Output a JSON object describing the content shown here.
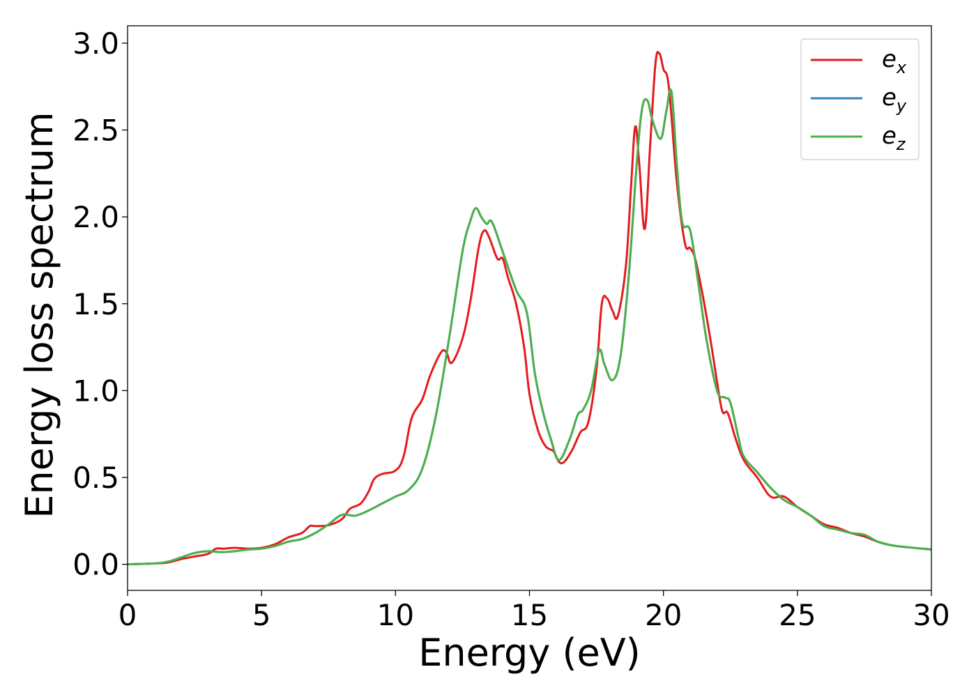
{
  "chart_data": {
    "type": "line",
    "xlabel": "Energy (eV)",
    "ylabel": "Energy loss spectrum",
    "xlim": [
      0,
      30
    ],
    "ylim": [
      -0.15,
      3.1
    ],
    "xticks": [
      0,
      5,
      10,
      15,
      20,
      25,
      30
    ],
    "yticks": [
      0.0,
      0.5,
      1.0,
      1.5,
      2.0,
      2.5,
      3.0
    ],
    "xtick_labels": [
      "0",
      "5",
      "10",
      "15",
      "20",
      "25",
      "30"
    ],
    "ytick_labels": [
      "0.0",
      "0.5",
      "1.0",
      "1.5",
      "2.0",
      "2.5",
      "3.0"
    ],
    "grid": false,
    "legend_position": "top-right",
    "series": [
      {
        "name": "e_x",
        "label_main": "e",
        "label_sub": "x",
        "color": "#e41a1c",
        "x": [
          0,
          1,
          1.5,
          2,
          2.5,
          3,
          3.3,
          3.6,
          4,
          4.5,
          5,
          5.5,
          6,
          6.5,
          6.8,
          7,
          7.5,
          8,
          8.3,
          8.7,
          9,
          9.2,
          9.5,
          10,
          10.3,
          10.6,
          11,
          11.3,
          11.7,
          11.9,
          12.1,
          12.5,
          12.8,
          13.1,
          13.3,
          13.5,
          13.8,
          14,
          14.2,
          14.5,
          14.8,
          15,
          15.3,
          15.6,
          15.9,
          16.1,
          16.3,
          16.6,
          16.9,
          17.2,
          17.5,
          17.7,
          17.9,
          18.1,
          18.3,
          18.6,
          18.8,
          18.95,
          19.1,
          19.3,
          19.5,
          19.7,
          19.85,
          20,
          20.2,
          20.5,
          20.8,
          21,
          21.2,
          21.5,
          21.8,
          22,
          22.2,
          22.4,
          22.7,
          23,
          23.5,
          24,
          24.5,
          25,
          25.5,
          26,
          26.5,
          27,
          27.5,
          28,
          28.5,
          29,
          30
        ],
        "y": [
          0.0,
          0.005,
          0.01,
          0.03,
          0.045,
          0.06,
          0.09,
          0.09,
          0.095,
          0.09,
          0.095,
          0.115,
          0.155,
          0.18,
          0.22,
          0.22,
          0.225,
          0.26,
          0.32,
          0.35,
          0.42,
          0.49,
          0.52,
          0.54,
          0.62,
          0.84,
          0.95,
          1.09,
          1.22,
          1.22,
          1.16,
          1.3,
          1.52,
          1.82,
          1.92,
          1.88,
          1.76,
          1.76,
          1.65,
          1.5,
          1.25,
          0.98,
          0.78,
          0.68,
          0.65,
          0.59,
          0.59,
          0.66,
          0.76,
          0.82,
          1.12,
          1.5,
          1.53,
          1.46,
          1.43,
          1.72,
          2.2,
          2.52,
          2.3,
          1.93,
          2.4,
          2.88,
          2.94,
          2.85,
          2.75,
          2.2,
          1.85,
          1.82,
          1.75,
          1.52,
          1.25,
          1.05,
          0.88,
          0.87,
          0.72,
          0.6,
          0.5,
          0.39,
          0.39,
          0.33,
          0.28,
          0.23,
          0.21,
          0.18,
          0.16,
          0.13,
          0.11,
          0.1,
          0.085
        ]
      },
      {
        "name": "e_y",
        "label_main": "e",
        "label_sub": "y",
        "color": "#377eb8",
        "x": [
          0,
          1,
          1.5,
          2,
          2.5,
          3,
          3.5,
          4,
          4.5,
          5,
          5.5,
          6,
          6.5,
          7,
          7.5,
          8,
          8.5,
          9,
          9.5,
          10,
          10.5,
          11,
          11.5,
          12,
          12.5,
          12.8,
          13,
          13.2,
          13.4,
          13.6,
          14,
          14.5,
          14.9,
          15.2,
          15.5,
          15.8,
          16.1,
          16.5,
          16.8,
          17,
          17.3,
          17.6,
          17.8,
          18.1,
          18.4,
          18.7,
          19,
          19.2,
          19.4,
          19.6,
          19.9,
          20.1,
          20.3,
          20.5,
          20.7,
          21,
          21.3,
          21.6,
          22,
          22.3,
          22.5,
          22.8,
          23,
          23.5,
          24,
          24.5,
          25,
          25.5,
          26,
          26.5,
          27,
          27.5,
          28,
          28.5,
          29,
          30
        ],
        "y": [
          0.0,
          0.005,
          0.015,
          0.04,
          0.065,
          0.075,
          0.07,
          0.075,
          0.085,
          0.09,
          0.105,
          0.13,
          0.145,
          0.18,
          0.23,
          0.285,
          0.28,
          0.31,
          0.35,
          0.39,
          0.43,
          0.55,
          0.85,
          1.3,
          1.8,
          1.98,
          2.05,
          2.0,
          1.96,
          1.97,
          1.8,
          1.58,
          1.45,
          1.1,
          0.88,
          0.72,
          0.6,
          0.72,
          0.86,
          0.89,
          1.0,
          1.23,
          1.15,
          1.06,
          1.2,
          1.65,
          2.3,
          2.62,
          2.67,
          2.55,
          2.45,
          2.6,
          2.72,
          2.3,
          1.97,
          1.92,
          1.62,
          1.3,
          1.0,
          0.96,
          0.93,
          0.73,
          0.62,
          0.53,
          0.44,
          0.37,
          0.33,
          0.28,
          0.22,
          0.2,
          0.18,
          0.17,
          0.13,
          0.11,
          0.1,
          0.085
        ]
      },
      {
        "name": "e_z",
        "label_main": "e",
        "label_sub": "z",
        "color": "#4daf4a",
        "x": [
          0,
          1,
          1.5,
          2,
          2.5,
          3,
          3.5,
          4,
          4.5,
          5,
          5.5,
          6,
          6.5,
          7,
          7.5,
          8,
          8.5,
          9,
          9.5,
          10,
          10.5,
          11,
          11.5,
          12,
          12.5,
          12.8,
          13,
          13.2,
          13.4,
          13.6,
          14,
          14.5,
          14.9,
          15.2,
          15.5,
          15.8,
          16.1,
          16.5,
          16.8,
          17,
          17.3,
          17.6,
          17.8,
          18.1,
          18.4,
          18.7,
          19,
          19.2,
          19.4,
          19.6,
          19.9,
          20.1,
          20.3,
          20.5,
          20.7,
          21,
          21.3,
          21.6,
          22,
          22.3,
          22.5,
          22.8,
          23,
          23.5,
          24,
          24.5,
          25,
          25.5,
          26,
          26.5,
          27,
          27.5,
          28,
          28.5,
          29,
          30
        ],
        "y": [
          0.0,
          0.005,
          0.015,
          0.04,
          0.065,
          0.075,
          0.07,
          0.075,
          0.085,
          0.09,
          0.105,
          0.13,
          0.145,
          0.18,
          0.23,
          0.285,
          0.28,
          0.31,
          0.35,
          0.39,
          0.43,
          0.55,
          0.85,
          1.3,
          1.8,
          1.98,
          2.05,
          2.0,
          1.96,
          1.97,
          1.8,
          1.58,
          1.45,
          1.1,
          0.88,
          0.72,
          0.6,
          0.72,
          0.86,
          0.89,
          1.0,
          1.23,
          1.15,
          1.06,
          1.2,
          1.65,
          2.3,
          2.62,
          2.67,
          2.55,
          2.45,
          2.6,
          2.72,
          2.3,
          1.97,
          1.92,
          1.62,
          1.3,
          1.0,
          0.96,
          0.93,
          0.73,
          0.62,
          0.53,
          0.44,
          0.37,
          0.33,
          0.28,
          0.22,
          0.2,
          0.18,
          0.17,
          0.13,
          0.11,
          0.1,
          0.085
        ]
      }
    ]
  }
}
